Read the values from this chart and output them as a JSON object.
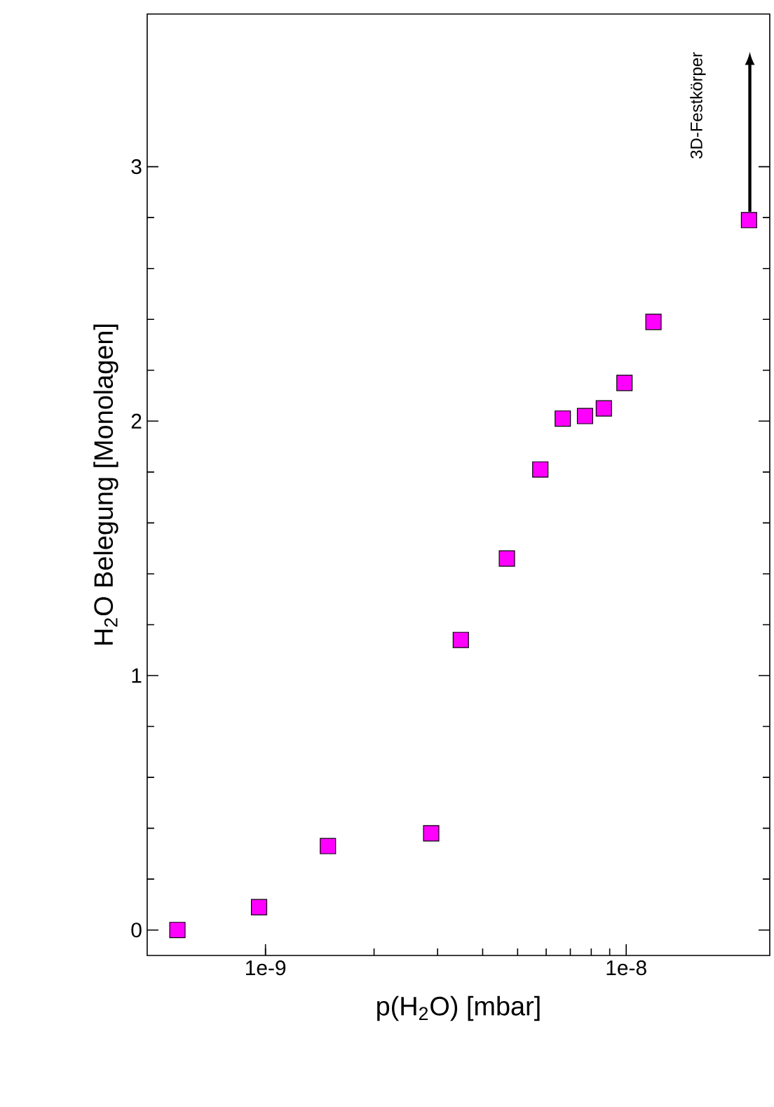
{
  "chart_data": {
    "type": "scatter",
    "xlabel": "p(H$_{2}$O) [mbar]",
    "ylabel": "H$_{2}$O Belegung [Monolagen]",
    "x": [
      5.7e-10,
      9.6e-10,
      1.49e-09,
      2.88e-09,
      3.48e-09,
      4.67e-09,
      5.78e-09,
      6.67e-09,
      7.69e-09,
      8.67e-09,
      9.89e-09,
      1.19e-08,
      2.19e-08
    ],
    "series": [
      {
        "color": "#ff00ff",
        "values": [
          0.0,
          0.09,
          0.33,
          0.38,
          1.14,
          1.46,
          1.81,
          2.01,
          2.02,
          2.05,
          2.15,
          2.39,
          2.79
        ]
      }
    ],
    "log": "x",
    "marker": "square",
    "grid": false,
    "xlim": [
      4.7e-10,
      2.5e-08
    ],
    "ylim": [
      -0.1,
      3.6
    ],
    "xticks": [
      {
        "value": 1e-09,
        "label": "1e-9"
      },
      {
        "value": 1e-08,
        "label": "1e-8"
      }
    ],
    "yticks": [
      0,
      1,
      2,
      3
    ],
    "annotations": [
      "3D-Festkörper"
    ]
  }
}
